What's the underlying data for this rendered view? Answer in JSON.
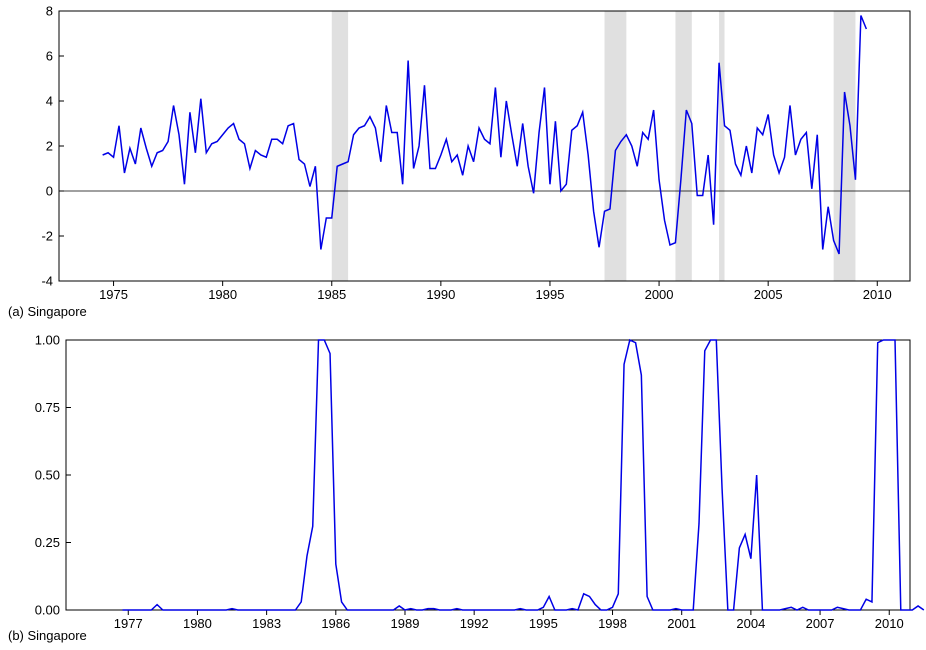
{
  "chart_data": [
    {
      "type": "line",
      "caption": "(a) Singapore",
      "color": "#0000e6",
      "shade_color": "#e0e0e0",
      "xlim": [
        1972.5,
        2011.5
      ],
      "ylim": [
        -4,
        8
      ],
      "y_ticks": [
        -4,
        -2,
        0,
        2,
        4,
        6,
        8
      ],
      "x_ticks": [
        1975,
        1980,
        1985,
        1990,
        1995,
        2000,
        2005,
        2010
      ],
      "zero_line": true,
      "shaded_periods": [
        [
          1985.0,
          1985.75
        ],
        [
          1997.5,
          1998.5
        ],
        [
          2000.75,
          2001.5
        ],
        [
          2002.75,
          2003.0
        ],
        [
          2008.0,
          2009.0
        ]
      ],
      "start": 1974.5,
      "step": 0.25,
      "values": [
        1.6,
        1.7,
        1.5,
        2.9,
        0.8,
        1.9,
        1.2,
        2.8,
        1.9,
        1.1,
        1.7,
        1.8,
        2.2,
        3.8,
        2.5,
        0.3,
        3.5,
        1.7,
        4.1,
        1.7,
        2.1,
        2.2,
        2.5,
        2.8,
        3.0,
        2.3,
        2.1,
        1.0,
        1.8,
        1.6,
        1.5,
        2.3,
        2.3,
        2.1,
        2.9,
        3.0,
        1.4,
        1.2,
        0.2,
        1.1,
        -2.6,
        -1.2,
        -1.2,
        1.1,
        1.2,
        1.3,
        2.5,
        2.8,
        2.9,
        3.3,
        2.8,
        1.3,
        3.8,
        2.6,
        2.6,
        0.3,
        5.8,
        1.0,
        2.0,
        4.7,
        1.0,
        1.0,
        1.6,
        2.3,
        1.3,
        1.6,
        0.7,
        2.0,
        1.3,
        2.8,
        2.3,
        2.1,
        4.6,
        1.5,
        4.0,
        2.5,
        1.1,
        3.0,
        1.1,
        -0.1,
        2.6,
        4.6,
        0.3,
        3.1,
        0.0,
        0.3,
        2.7,
        2.9,
        3.5,
        1.6,
        -0.9,
        -2.5,
        -0.9,
        -0.8,
        1.8,
        2.2,
        2.5,
        2.0,
        1.1,
        2.6,
        2.3,
        3.6,
        0.5,
        -1.3,
        -2.4,
        -2.3,
        0.5,
        3.6,
        3.0,
        -0.2,
        -0.2,
        1.6,
        -1.5,
        5.7,
        2.9,
        2.7,
        1.2,
        0.7,
        2.0,
        0.8,
        2.8,
        2.5,
        3.4,
        1.6,
        0.8,
        1.5,
        3.8,
        1.6,
        2.3,
        2.6,
        0.1,
        2.5,
        -2.6,
        -0.7,
        -2.2,
        -2.8,
        4.4,
        2.9,
        0.5,
        7.8,
        7.2
      ]
    },
    {
      "type": "line",
      "caption": "(b) Singapore",
      "color": "#0000e6",
      "xlim": [
        1974.3,
        2010.9
      ],
      "ylim": [
        0,
        1
      ],
      "y_ticks": [
        0.0,
        0.25,
        0.5,
        0.75,
        1.0
      ],
      "y_tick_labels": [
        "0.00",
        "0.25",
        "0.50",
        "0.75",
        "1.00"
      ],
      "x_ticks": [
        1977,
        1980,
        1983,
        1986,
        1989,
        1992,
        1995,
        1998,
        2001,
        2004,
        2007,
        2010
      ],
      "start": 1976.75,
      "step": 0.25,
      "values": [
        0.0,
        0.0,
        0.0,
        0.0,
        0.0,
        0.0,
        0.02,
        0.0,
        0.0,
        0.0,
        0.0,
        0.0,
        0.0,
        0.0,
        0.0,
        0.0,
        0.0,
        0.0,
        0.0,
        0.005,
        0.0,
        0.0,
        0.0,
        0.0,
        0.0,
        0.0,
        0.0,
        0.0,
        0.0,
        0.0,
        0.0,
        0.03,
        0.2,
        0.31,
        1.0,
        1.0,
        0.95,
        0.17,
        0.03,
        0.0,
        0.0,
        0.0,
        0.0,
        0.0,
        0.0,
        0.0,
        0.0,
        0.0,
        0.015,
        0.0,
        0.005,
        0.0,
        0.0,
        0.005,
        0.005,
        0.0,
        0.0,
        0.0,
        0.005,
        0.0,
        0.0,
        0.0,
        0.0,
        0.0,
        0.0,
        0.0,
        0.0,
        0.0,
        0.0,
        0.005,
        0.0,
        0.0,
        0.0,
        0.01,
        0.05,
        0.0,
        0.0,
        0.0,
        0.005,
        0.0,
        0.06,
        0.05,
        0.02,
        0.0,
        0.0,
        0.01,
        0.06,
        0.91,
        1.0,
        0.99,
        0.87,
        0.05,
        0.0,
        0.0,
        0.0,
        0.0,
        0.005,
        0.0,
        0.0,
        0.0,
        0.32,
        0.96,
        1.0,
        1.0,
        0.45,
        0.0,
        0.0,
        0.23,
        0.28,
        0.19,
        0.5,
        0.0,
        0.0,
        0.0,
        0.0,
        0.005,
        0.01,
        0.0,
        0.01,
        0.0,
        0.0,
        0.0,
        0.0,
        0.0,
        0.01,
        0.005,
        0.0,
        0.0,
        0.0,
        0.04,
        0.03,
        0.99,
        1.0,
        1.0,
        1.0,
        0.0,
        0.0,
        0.0,
        0.015,
        0.0
      ]
    }
  ]
}
